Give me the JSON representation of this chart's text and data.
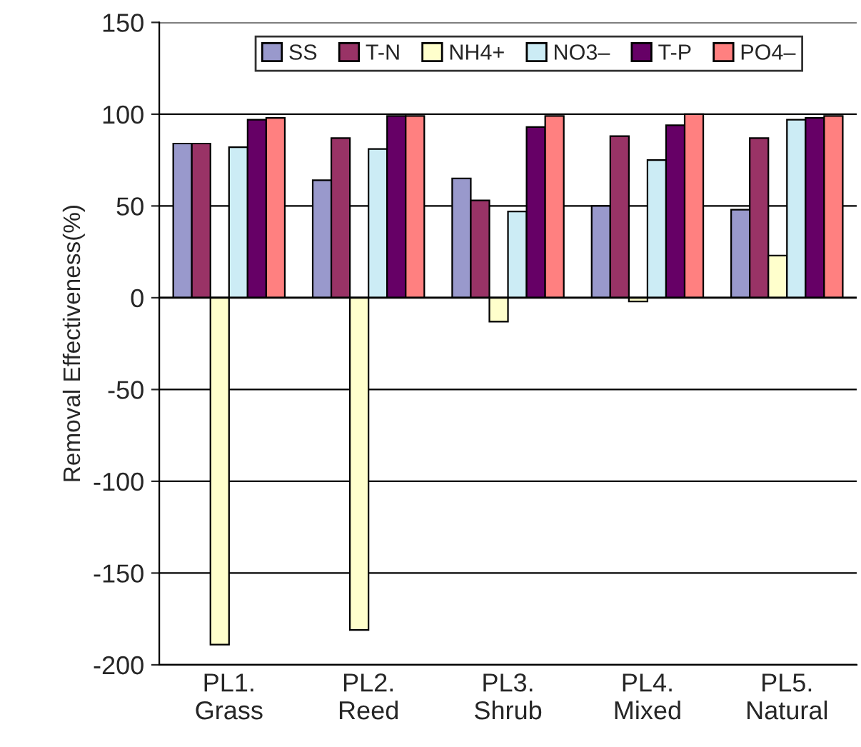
{
  "chart_data": {
    "type": "bar",
    "ylabel": "Removal Effectiveness(%)",
    "categories": [
      "PL1.\nGrass",
      "PL2.\nReed",
      "PL3.\nShrub",
      "PL4.\nMixed",
      "PL5.\nNatural"
    ],
    "series": [
      {
        "name": "SS",
        "color": "#9999cc",
        "values": [
          84,
          64,
          65,
          50,
          48
        ]
      },
      {
        "name": "T-N",
        "color": "#993366",
        "values": [
          84,
          87,
          53,
          88,
          87
        ]
      },
      {
        "name": "NH4+",
        "color": "#ffffcc",
        "values": [
          -189,
          -181,
          -13,
          -2,
          23
        ]
      },
      {
        "name": "NO3–",
        "color": "#ccecf5",
        "values": [
          82,
          81,
          47,
          75,
          97
        ]
      },
      {
        "name": "T-P",
        "color": "#660066",
        "values": [
          97,
          99,
          93,
          94,
          98
        ]
      },
      {
        "name": "PO4–",
        "color": "#ff8080",
        "values": [
          98,
          99,
          99,
          100,
          99
        ]
      }
    ],
    "ylim": [
      -200,
      150
    ],
    "yticks": [
      -200,
      -150,
      -100,
      -50,
      0,
      50,
      100,
      150
    ],
    "grid": "y",
    "legend": "top"
  }
}
